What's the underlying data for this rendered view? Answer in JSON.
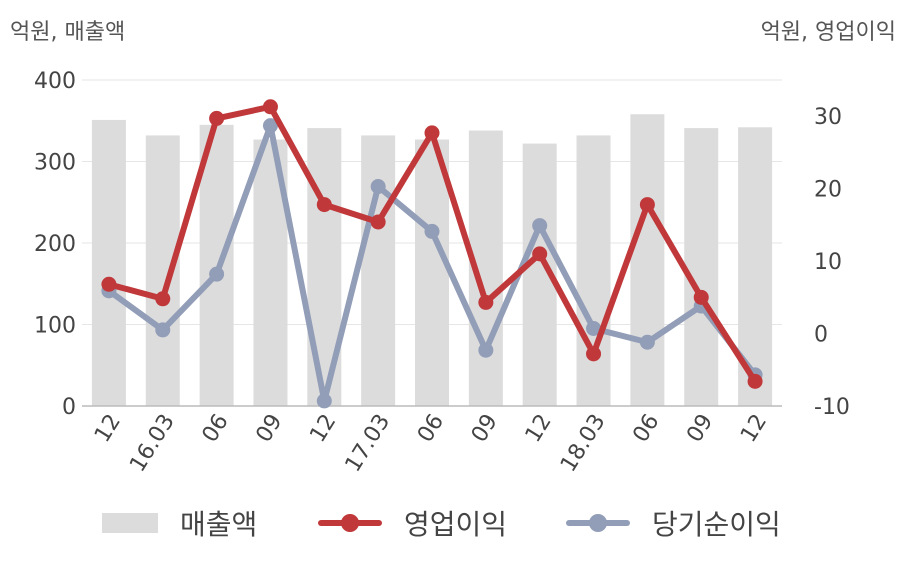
{
  "units": {
    "left": "억원, 매출액",
    "right": "억원, 영업이익"
  },
  "legend": {
    "revenue": "매출액",
    "operating": "영업이익",
    "net": "당기순이익"
  },
  "colors": {
    "revenue": "#dcdcdc",
    "operating": "#c0383a",
    "net": "#929db7",
    "grid": "#e6e6e6",
    "axis": "#bbbbbb",
    "text": "#444444"
  },
  "chart_data": {
    "type": "bar",
    "categories": [
      "12",
      "16.03",
      "06",
      "09",
      "12",
      "17.03",
      "06",
      "09",
      "12",
      "18.03",
      "06",
      "09",
      "12"
    ],
    "y_left": {
      "ylim": [
        0,
        400
      ],
      "ticks": [
        0,
        100,
        200,
        300,
        400
      ]
    },
    "y_right": {
      "ylim": [
        -10,
        35
      ],
      "ticks": [
        -10,
        0,
        10,
        20,
        30
      ]
    },
    "grid": true,
    "legend_position": "bottom",
    "series": [
      {
        "name": "매출액",
        "type": "bar",
        "axis": "left",
        "values": [
          351,
          332,
          345,
          327,
          341,
          332,
          327,
          338,
          322,
          332,
          358,
          341,
          342
        ]
      },
      {
        "name": "영업이익",
        "type": "line",
        "axis": "right",
        "values": [
          6.8,
          4.8,
          29.7,
          31.3,
          17.8,
          15.4,
          27.7,
          4.3,
          11.0,
          -2.8,
          17.8,
          5.0,
          -6.6
        ]
      },
      {
        "name": "당기순이익",
        "type": "line",
        "axis": "right",
        "values": [
          5.9,
          0.5,
          8.2,
          28.7,
          -9.3,
          20.3,
          14.1,
          -2.3,
          14.9,
          0.7,
          -1.2,
          3.8,
          -5.7
        ]
      }
    ]
  }
}
